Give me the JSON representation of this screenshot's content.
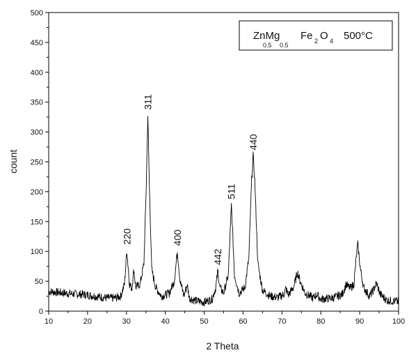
{
  "chart_data": {
    "type": "line",
    "xlabel": "2 Theta",
    "ylabel": "count",
    "xlim": [
      10,
      100
    ],
    "ylim": [
      0,
      500
    ],
    "x_ticks": [
      10,
      20,
      30,
      40,
      50,
      60,
      70,
      80,
      90,
      100
    ],
    "y_ticks": [
      0,
      50,
      100,
      150,
      200,
      250,
      300,
      350,
      400,
      450,
      500
    ],
    "grid": false,
    "legend": {
      "placement": "top-right",
      "compound": "ZnMg",
      "sub1": "0.5",
      "sub2": "0.5",
      "fe": "Fe",
      "sub3": "2",
      "o": "O",
      "sub4": "4",
      "temp": "500°C"
    },
    "peaks": [
      {
        "label": "220",
        "x": 30.1,
        "y": 102
      },
      {
        "label": "311",
        "x": 35.5,
        "y": 328
      },
      {
        "label": "400",
        "x": 43.1,
        "y": 100
      },
      {
        "label": "442",
        "x": 53.5,
        "y": 68
      },
      {
        "label": "511",
        "x": 57.0,
        "y": 178
      },
      {
        "label": "440",
        "x": 62.6,
        "y": 260
      }
    ],
    "series": [
      {
        "values": [
          [
            10,
            33
          ],
          [
            13,
            31
          ],
          [
            16,
            29
          ],
          [
            19,
            28
          ],
          [
            22,
            25
          ],
          [
            25,
            22
          ],
          [
            27,
            22
          ],
          [
            28.5,
            25
          ],
          [
            29.5,
            45
          ],
          [
            30.1,
            102
          ],
          [
            30.8,
            45
          ],
          [
            31.4,
            38
          ],
          [
            31.9,
            70
          ],
          [
            32.4,
            40
          ],
          [
            33.5,
            45
          ],
          [
            34.5,
            80
          ],
          [
            35.1,
            210
          ],
          [
            35.5,
            328
          ],
          [
            35.9,
            210
          ],
          [
            36.5,
            70
          ],
          [
            37.5,
            40
          ],
          [
            39,
            25
          ],
          [
            41,
            30
          ],
          [
            42.3,
            50
          ],
          [
            43.1,
            100
          ],
          [
            43.8,
            50
          ],
          [
            44.8,
            26
          ],
          [
            45.6,
            44
          ],
          [
            46.2,
            22
          ],
          [
            48,
            17
          ],
          [
            50,
            15
          ],
          [
            52,
            20
          ],
          [
            53,
            40
          ],
          [
            53.5,
            68
          ],
          [
            54,
            40
          ],
          [
            55,
            30
          ],
          [
            56.2,
            60
          ],
          [
            57,
            178
          ],
          [
            57.8,
            60
          ],
          [
            59,
            30
          ],
          [
            60.5,
            40
          ],
          [
            61.5,
            90
          ],
          [
            62.2,
            220
          ],
          [
            62.6,
            260
          ],
          [
            63,
            220
          ],
          [
            63.8,
            80
          ],
          [
            65,
            35
          ],
          [
            67,
            25
          ],
          [
            69,
            23
          ],
          [
            70.5,
            28
          ],
          [
            71,
            38
          ],
          [
            71.6,
            27
          ],
          [
            73,
            40
          ],
          [
            74,
            65
          ],
          [
            74.8,
            48
          ],
          [
            76,
            30
          ],
          [
            78,
            22
          ],
          [
            79,
            28
          ],
          [
            80,
            20
          ],
          [
            83,
            22
          ],
          [
            85.5,
            28
          ],
          [
            86.5,
            45
          ],
          [
            87.5,
            38
          ],
          [
            88.5,
            45
          ],
          [
            89.2,
            95
          ],
          [
            89.5,
            112
          ],
          [
            90.2,
            70
          ],
          [
            91,
            40
          ],
          [
            92.5,
            25
          ],
          [
            93.5,
            35
          ],
          [
            94.3,
            47
          ],
          [
            95.3,
            28
          ],
          [
            97,
            18
          ],
          [
            100,
            16
          ]
        ]
      }
    ]
  }
}
